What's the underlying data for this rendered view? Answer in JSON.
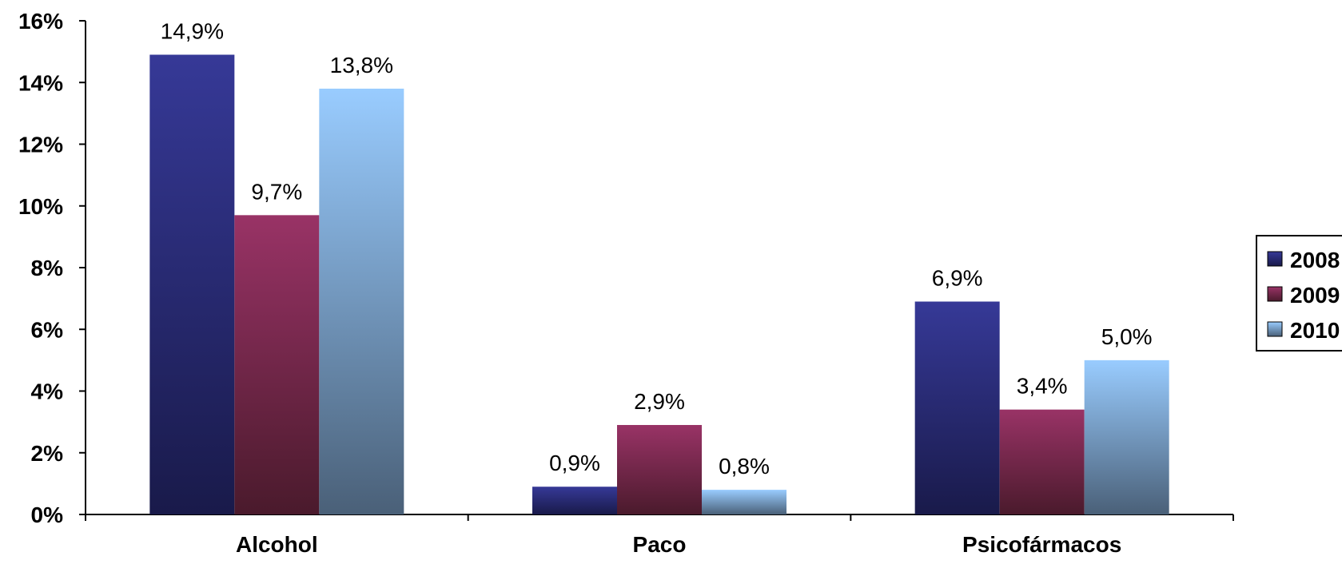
{
  "chart_data": {
    "type": "bar",
    "title": "",
    "xlabel": "",
    "ylabel": "",
    "categories": [
      "Alcohol",
      "Paco",
      "Psicofármacos"
    ],
    "series": [
      {
        "name": "2008",
        "values": [
          14.9,
          0.9,
          6.9
        ],
        "data_labels": [
          "14,9%",
          "0,9%",
          "6,9%"
        ],
        "color_top": "#363997",
        "color_bottom": "#191a4a"
      },
      {
        "name": "2009",
        "values": [
          9.7,
          2.9,
          3.4
        ],
        "data_labels": [
          "9,7%",
          "2,9%",
          "3,4%"
        ],
        "color_top": "#993366",
        "color_bottom": "#4a1a2c"
      },
      {
        "name": "2010",
        "values": [
          13.8,
          0.8,
          5.0
        ],
        "data_labels": [
          "13,8%",
          "0,8%",
          "5,0%"
        ],
        "color_top": "#99ccff",
        "color_bottom": "#4a6078"
      }
    ],
    "ylim": [
      0,
      16
    ],
    "y_ticks": [
      0,
      2,
      4,
      6,
      8,
      10,
      12,
      14,
      16
    ],
    "y_tick_labels": [
      "0%",
      "2%",
      "4%",
      "6%",
      "8%",
      "10%",
      "12%",
      "14%",
      "16%"
    ],
    "grid": false,
    "legend_placement": "right"
  }
}
